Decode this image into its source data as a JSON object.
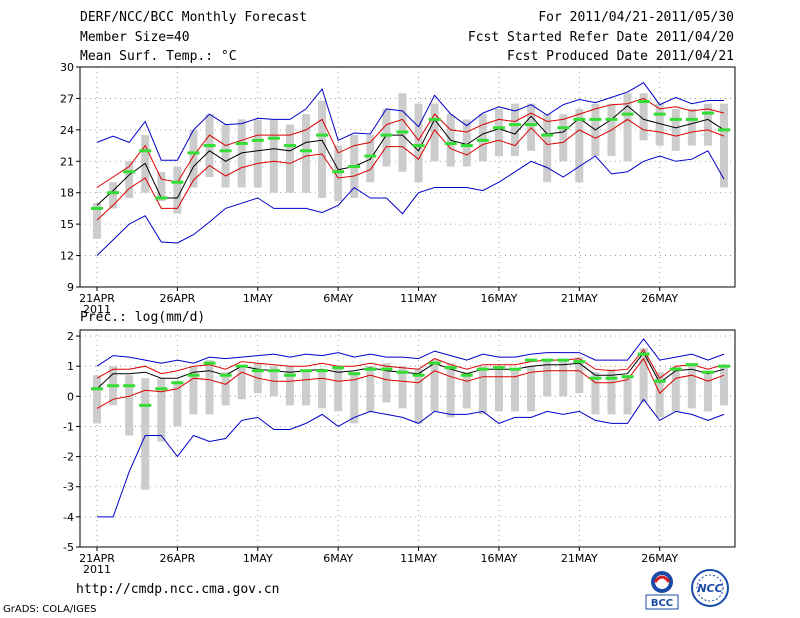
{
  "header": {
    "title": "DERF/NCC/BCC Monthly Forecast",
    "member_size": "Member Size=40",
    "variable": "Mean Surf. Temp.: °C",
    "period": "For 2011/04/21-2011/05/30",
    "start_date": "Fcst Started Refer Date 2011/04/20",
    "produced_date": "Fcst Produced Date 2011/04/21"
  },
  "footer": {
    "url": "http://cmdp.ncc.cma.gov.cn",
    "grads": "GrADS: COLA/IGES",
    "logo1_text": "BCC",
    "logo2_text": "NCC"
  },
  "colors": {
    "ensemble_bounds": "#0000cc",
    "quartiles": "#dd0000",
    "mean": "#000000",
    "spread_bar": "#cccccc",
    "reference_dash": "#33dd33"
  },
  "chart_data": [
    {
      "type": "line",
      "title": "Mean Surf. Temp.: °C",
      "ylabel": "°C",
      "ylim": [
        9,
        30
      ],
      "yticks": [
        9,
        12,
        15,
        18,
        21,
        24,
        27,
        30
      ],
      "x": [
        1,
        2,
        3,
        4,
        5,
        6,
        7,
        8,
        9,
        10,
        11,
        12,
        13,
        14,
        15,
        16,
        17,
        18,
        19,
        20,
        21,
        22,
        23,
        24,
        25,
        26,
        27,
        28,
        29,
        30,
        31,
        32,
        33,
        34,
        35,
        36,
        37,
        38,
        39,
        40
      ],
      "xticks": [
        {
          "day": 1,
          "label": "21APR",
          "sub": "2011"
        },
        {
          "day": 6,
          "label": "26APR"
        },
        {
          "day": 11,
          "label": "1MAY"
        },
        {
          "day": 16,
          "label": "6MAY"
        },
        {
          "day": 21,
          "label": "11MAY"
        },
        {
          "day": 26,
          "label": "16MAY"
        },
        {
          "day": 31,
          "label": "21MAY"
        },
        {
          "day": 36,
          "label": "26MAY"
        }
      ],
      "grid": true,
      "series": [
        {
          "name": "max",
          "values": [
            22.8,
            23.4,
            22.8,
            24.8,
            21.1,
            21.1,
            24.0,
            25.5,
            24.5,
            24.6,
            25.1,
            25.0,
            25.0,
            26.0,
            27.9,
            23.0,
            23.7,
            23.6,
            26.0,
            25.8,
            24.3,
            27.3,
            25.5,
            24.4,
            25.6,
            26.2,
            25.8,
            26.4,
            25.4,
            26.4,
            26.9,
            26.6,
            27.1,
            27.6,
            28.5,
            26.4,
            27.1,
            26.5,
            26.8,
            26.8
          ]
        },
        {
          "name": "upper",
          "values": [
            18.5,
            19.5,
            20.5,
            22.5,
            19.3,
            19.0,
            21.5,
            23.5,
            22.5,
            23.0,
            23.5,
            23.5,
            23.5,
            24.0,
            25.0,
            21.8,
            22.5,
            22.8,
            24.5,
            25.0,
            23.0,
            25.5,
            24.0,
            23.8,
            24.5,
            25.0,
            24.8,
            25.6,
            24.8,
            25.0,
            25.5,
            26.0,
            26.4,
            26.5,
            27.0,
            26.0,
            26.2,
            25.8,
            26.0,
            25.6
          ]
        },
        {
          "name": "mean",
          "values": [
            16.8,
            18.2,
            19.7,
            20.8,
            17.5,
            17.5,
            20.5,
            22.0,
            21.0,
            21.8,
            22.0,
            22.2,
            22.0,
            22.8,
            23.0,
            20.2,
            20.5,
            21.2,
            23.5,
            23.5,
            22.0,
            25.0,
            23.0,
            22.6,
            23.6,
            24.1,
            23.6,
            25.3,
            23.6,
            23.8,
            25.1,
            24.0,
            25.0,
            26.3,
            25.0,
            24.6,
            24.2,
            24.6,
            25.0,
            24.0
          ]
        },
        {
          "name": "lower",
          "values": [
            15.4,
            16.8,
            18.4,
            19.4,
            16.5,
            16.5,
            19.2,
            20.6,
            19.6,
            20.4,
            20.8,
            21.0,
            20.8,
            21.5,
            21.7,
            19.4,
            19.6,
            20.2,
            22.4,
            22.4,
            21.2,
            24.0,
            22.2,
            21.6,
            22.6,
            23.0,
            22.5,
            24.2,
            22.6,
            22.8,
            24.0,
            23.2,
            24.0,
            25.0,
            24.0,
            23.8,
            23.4,
            23.8,
            24.0,
            23.4
          ]
        },
        {
          "name": "min",
          "values": [
            12.0,
            13.5,
            15.0,
            15.8,
            13.3,
            13.2,
            14.0,
            15.2,
            16.5,
            17.0,
            17.5,
            16.5,
            16.5,
            16.5,
            16.1,
            16.8,
            18.5,
            17.5,
            17.5,
            16.0,
            18.0,
            18.5,
            18.5,
            18.5,
            18.2,
            19.0,
            20.0,
            21.0,
            20.4,
            19.5,
            20.5,
            21.5,
            19.8,
            20.0,
            21.0,
            21.5,
            21.0,
            21.2,
            22.0,
            19.3
          ]
        }
      ],
      "spread_bars": [
        [
          13.6,
          17.0
        ],
        [
          16.5,
          19.0
        ],
        [
          17.5,
          21.0
        ],
        [
          18.0,
          23.5
        ],
        [
          17.2,
          20.0
        ],
        [
          16.0,
          20.5
        ],
        [
          18.5,
          24.0
        ],
        [
          19.5,
          25.5
        ],
        [
          18.5,
          24.5
        ],
        [
          18.5,
          25.0
        ],
        [
          18.5,
          25.0
        ],
        [
          18.0,
          25.0
        ],
        [
          18.0,
          24.5
        ],
        [
          18.0,
          25.5
        ],
        [
          17.5,
          26.8
        ],
        [
          17.2,
          22.5
        ],
        [
          17.5,
          23.5
        ],
        [
          19.0,
          23.5
        ],
        [
          20.5,
          26.0
        ],
        [
          20.0,
          27.5
        ],
        [
          19.0,
          26.5
        ],
        [
          21.0,
          26.5
        ],
        [
          20.5,
          25.5
        ],
        [
          20.5,
          25.0
        ],
        [
          21.0,
          25.5
        ],
        [
          21.5,
          26.0
        ],
        [
          21.5,
          26.5
        ],
        [
          22.0,
          26.5
        ],
        [
          19.0,
          25.5
        ],
        [
          21.0,
          25.5
        ],
        [
          19.0,
          26.0
        ],
        [
          21.5,
          26.5
        ],
        [
          21.5,
          26.5
        ],
        [
          21.0,
          27.5
        ],
        [
          23.0,
          27.5
        ],
        [
          22.5,
          26.5
        ],
        [
          22.0,
          26.0
        ],
        [
          22.5,
          26.0
        ],
        [
          22.5,
          26.5
        ],
        [
          18.5,
          26.5
        ]
      ],
      "reference_marks": [
        16.5,
        18.0,
        20.0,
        22.0,
        17.5,
        19.0,
        21.8,
        22.5,
        22.0,
        22.7,
        23.0,
        23.2,
        22.5,
        22.0,
        23.5,
        20.0,
        20.5,
        21.5,
        23.5,
        23.8,
        22.5,
        25.0,
        22.7,
        22.5,
        23.0,
        24.2,
        24.5,
        24.5,
        23.5,
        24.2,
        25.0,
        25.0,
        25.0,
        25.5,
        26.7,
        25.5,
        25.0,
        25.0,
        25.6,
        24.0
      ]
    },
    {
      "type": "line",
      "title": "Prec.: log(mm/d)",
      "ylabel": "log(mm/d)",
      "ylim": [
        -5,
        2.2
      ],
      "yticks": [
        -5,
        -4,
        -3,
        -2,
        -1,
        0,
        1,
        2
      ],
      "x": [
        1,
        2,
        3,
        4,
        5,
        6,
        7,
        8,
        9,
        10,
        11,
        12,
        13,
        14,
        15,
        16,
        17,
        18,
        19,
        20,
        21,
        22,
        23,
        24,
        25,
        26,
        27,
        28,
        29,
        30,
        31,
        32,
        33,
        34,
        35,
        36,
        37,
        38,
        39,
        40
      ],
      "xticks": [
        {
          "day": 1,
          "label": "21APR",
          "sub": "2011"
        },
        {
          "day": 6,
          "label": "26APR"
        },
        {
          "day": 11,
          "label": "1MAY"
        },
        {
          "day": 16,
          "label": "6MAY"
        },
        {
          "day": 21,
          "label": "11MAY"
        },
        {
          "day": 26,
          "label": "16MAY"
        },
        {
          "day": 31,
          "label": "21MAY"
        },
        {
          "day": 36,
          "label": "26MAY"
        }
      ],
      "grid": true,
      "series": [
        {
          "name": "max",
          "values": [
            1.0,
            1.35,
            1.3,
            1.2,
            1.1,
            1.2,
            1.1,
            1.3,
            1.25,
            1.3,
            1.35,
            1.4,
            1.3,
            1.4,
            1.35,
            1.45,
            1.3,
            1.4,
            1.3,
            1.3,
            1.25,
            1.5,
            1.35,
            1.2,
            1.4,
            1.3,
            1.3,
            1.4,
            1.45,
            1.45,
            1.45,
            1.2,
            1.2,
            1.2,
            1.9,
            1.2,
            1.3,
            1.4,
            1.2,
            1.4
          ]
        },
        {
          "name": "upper",
          "values": [
            0.6,
            0.9,
            0.9,
            1.0,
            0.75,
            0.85,
            1.0,
            1.05,
            0.9,
            1.15,
            1.1,
            1.05,
            1.0,
            1.0,
            1.1,
            1.0,
            1.0,
            1.1,
            1.0,
            0.95,
            0.9,
            1.25,
            1.05,
            0.9,
            1.05,
            1.05,
            1.05,
            1.15,
            1.2,
            1.2,
            1.25,
            0.9,
            0.85,
            0.9,
            1.55,
            0.6,
            1.0,
            1.05,
            0.9,
            1.05
          ]
        },
        {
          "name": "mean",
          "values": [
            0.25,
            0.75,
            0.75,
            0.8,
            0.6,
            0.6,
            0.8,
            0.85,
            0.7,
            1.0,
            0.9,
            0.85,
            0.8,
            0.85,
            0.9,
            0.8,
            0.85,
            0.95,
            0.85,
            0.8,
            0.75,
            1.1,
            0.9,
            0.75,
            0.9,
            0.9,
            0.9,
            1.0,
            1.05,
            1.05,
            1.1,
            0.7,
            0.7,
            0.75,
            1.45,
            0.45,
            0.85,
            0.9,
            0.75,
            0.9
          ]
        },
        {
          "name": "lower",
          "values": [
            -0.4,
            -0.1,
            0.0,
            0.2,
            0.15,
            0.25,
            0.6,
            0.55,
            0.4,
            0.8,
            0.6,
            0.5,
            0.5,
            0.55,
            0.6,
            0.5,
            0.55,
            0.7,
            0.55,
            0.5,
            0.45,
            0.85,
            0.65,
            0.5,
            0.65,
            0.65,
            0.65,
            0.8,
            0.85,
            0.85,
            0.85,
            0.45,
            0.45,
            0.55,
            1.25,
            0.1,
            0.6,
            0.7,
            0.5,
            0.7
          ]
        },
        {
          "name": "min",
          "values": [
            -4.0,
            -4.0,
            -2.5,
            -1.3,
            -1.3,
            -2.0,
            -1.3,
            -1.5,
            -1.4,
            -0.8,
            -0.7,
            -1.1,
            -1.1,
            -0.9,
            -0.6,
            -1.0,
            -0.7,
            -0.5,
            -0.6,
            -0.7,
            -0.9,
            -0.5,
            -0.6,
            -0.6,
            -0.5,
            -0.9,
            -0.7,
            -0.7,
            -0.5,
            -0.6,
            -0.5,
            -0.8,
            -0.9,
            -0.9,
            -0.1,
            -0.8,
            -0.5,
            -0.6,
            -0.8,
            -0.6
          ]
        }
      ],
      "spread_bars": [
        [
          -0.9,
          0.7
        ],
        [
          -0.3,
          1.0
        ],
        [
          -1.3,
          0.7
        ],
        [
          -3.1,
          0.6
        ],
        [
          -1.5,
          0.6
        ],
        [
          -1.0,
          0.5
        ],
        [
          -0.6,
          1.0
        ],
        [
          -0.6,
          1.2
        ],
        [
          -0.3,
          0.8
        ],
        [
          -0.1,
          1.0
        ],
        [
          0.1,
          1.1
        ],
        [
          0.0,
          1.0
        ],
        [
          -0.3,
          1.0
        ],
        [
          -0.3,
          0.8
        ],
        [
          -0.4,
          0.9
        ],
        [
          -0.5,
          1.0
        ],
        [
          -0.9,
          0.8
        ],
        [
          -0.5,
          1.0
        ],
        [
          -0.2,
          1.1
        ],
        [
          -0.4,
          1.0
        ],
        [
          -0.9,
          0.9
        ],
        [
          -0.5,
          1.2
        ],
        [
          -0.7,
          1.1
        ],
        [
          -0.4,
          0.8
        ],
        [
          -0.6,
          1.0
        ],
        [
          -0.5,
          1.0
        ],
        [
          -0.5,
          0.9
        ],
        [
          -0.5,
          1.0
        ],
        [
          0.0,
          1.2
        ],
        [
          0.0,
          1.2
        ],
        [
          0.1,
          1.3
        ],
        [
          -0.6,
          0.8
        ],
        [
          -0.6,
          0.9
        ],
        [
          -0.6,
          0.7
        ],
        [
          -0.2,
          1.6
        ],
        [
          -0.7,
          0.8
        ],
        [
          -0.5,
          1.0
        ],
        [
          -0.4,
          1.0
        ],
        [
          -0.5,
          0.8
        ],
        [
          -0.3,
          1.0
        ]
      ],
      "reference_marks": [
        0.25,
        0.35,
        0.35,
        -0.3,
        0.25,
        0.45,
        0.7,
        1.1,
        0.7,
        1.0,
        0.85,
        0.85,
        0.7,
        0.85,
        0.85,
        0.95,
        0.75,
        0.9,
        0.9,
        0.8,
        0.7,
        1.1,
        0.95,
        0.7,
        0.9,
        0.95,
        0.9,
        1.2,
        1.2,
        1.2,
        1.15,
        0.6,
        0.6,
        0.65,
        1.4,
        0.5,
        0.9,
        1.05,
        0.8,
        1.0
      ]
    }
  ]
}
